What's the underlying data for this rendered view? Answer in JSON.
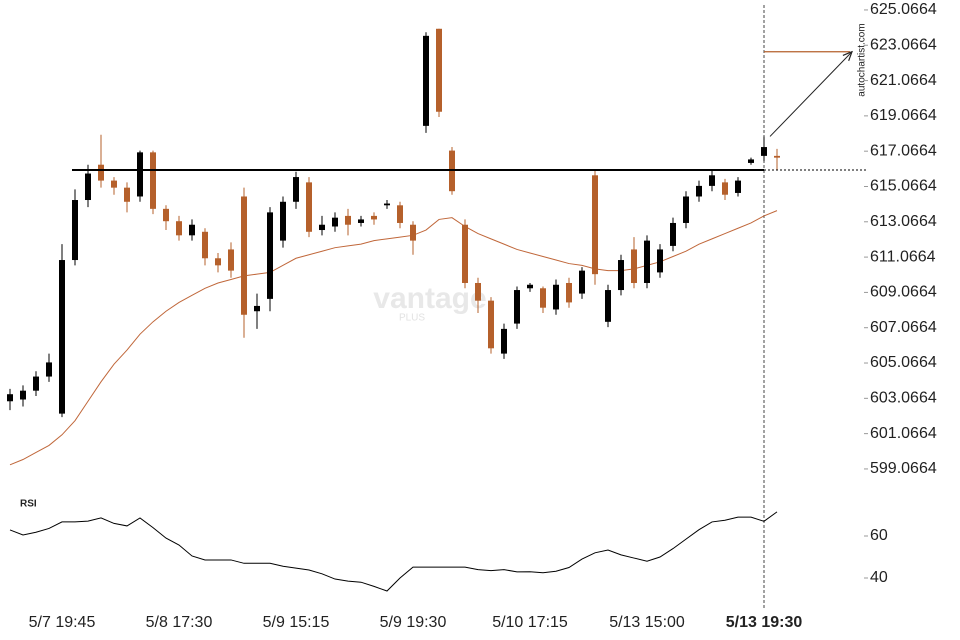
{
  "chart_data": {
    "type": "candlestick",
    "categories": [
      null,
      null,
      null,
      null,
      "5/7 19:45",
      null,
      null,
      null,
      null,
      null,
      null,
      null,
      null,
      "5/8 17:30",
      null,
      null,
      null,
      null,
      null,
      null,
      null,
      null,
      "5/9 15:15",
      null,
      null,
      null,
      null,
      null,
      null,
      null,
      null,
      "5/9 19:30",
      null,
      null,
      null,
      null,
      null,
      null,
      null,
      null,
      "5/10 17:15",
      null,
      null,
      null,
      null,
      null,
      null,
      null,
      null,
      "5/13 15:00",
      null,
      null,
      null,
      null,
      null,
      null,
      null,
      null,
      "5/13 19:30",
      null
    ],
    "open": [
      602.9,
      603.0,
      603.5,
      604.3,
      602.2,
      610.9,
      614.3,
      616.3,
      615.4,
      615.0,
      614.5,
      617.0,
      613.8,
      613.1,
      612.3,
      612.5,
      611.0,
      611.5,
      614.5,
      608.0,
      608.7,
      612.0,
      614.2,
      615.3,
      612.6,
      612.8,
      613.4,
      613.0,
      613.4,
      614.0,
      614.0,
      612.9,
      618.5,
      624.0,
      617.1,
      612.9,
      609.6,
      608.6,
      605.6,
      607.3,
      609.3,
      609.3,
      608.1,
      609.6,
      609.0,
      615.7,
      607.4,
      609.2,
      611.5,
      609.6,
      610.2,
      611.7,
      613.0,
      614.5,
      615.1,
      615.3,
      614.7,
      616.4,
      616.8,
      616.8
    ],
    "high": [
      603.6,
      603.8,
      604.6,
      605.6,
      611.8,
      614.9,
      616.3,
      618.0,
      615.6,
      615.3,
      617.1,
      617.1,
      614.0,
      613.4,
      613.2,
      612.7,
      611.3,
      611.9,
      615.0,
      609.0,
      613.9,
      614.5,
      615.9,
      615.6,
      613.4,
      613.6,
      613.8,
      613.4,
      613.6,
      614.3,
      614.2,
      613.1,
      623.8,
      624.0,
      617.3,
      613.2,
      609.9,
      608.8,
      607.3,
      609.4,
      609.6,
      609.4,
      609.8,
      609.9,
      610.5,
      616.0,
      609.5,
      611.2,
      612.2,
      612.3,
      611.8,
      613.3,
      614.8,
      615.4,
      616.0,
      615.5,
      615.6,
      616.7,
      617.9,
      617.2
    ],
    "low": [
      602.4,
      602.6,
      603.2,
      604.0,
      602.0,
      610.6,
      613.9,
      615.0,
      614.6,
      613.6,
      614.2,
      613.5,
      612.6,
      612.0,
      612.0,
      610.6,
      610.2,
      609.9,
      606.5,
      607.0,
      608.0,
      611.6,
      613.8,
      612.2,
      612.3,
      612.5,
      612.3,
      612.8,
      612.9,
      613.8,
      612.7,
      611.2,
      618.1,
      619.0,
      614.6,
      609.3,
      607.9,
      605.6,
      605.3,
      607.0,
      609.1,
      607.9,
      607.8,
      608.2,
      608.7,
      609.5,
      607.1,
      608.9,
      609.3,
      609.3,
      609.9,
      611.4,
      612.7,
      614.2,
      614.8,
      614.3,
      614.5,
      616.3,
      616.5,
      616.0
    ],
    "close": [
      603.3,
      603.5,
      604.3,
      605.1,
      610.9,
      614.3,
      615.8,
      615.4,
      615.0,
      614.2,
      617.0,
      613.8,
      613.1,
      612.3,
      612.9,
      611.0,
      610.6,
      610.3,
      607.8,
      608.3,
      613.6,
      614.2,
      615.6,
      612.5,
      612.9,
      613.3,
      612.9,
      613.2,
      613.2,
      614.1,
      613.0,
      612.0,
      623.6,
      619.3,
      614.8,
      609.6,
      608.6,
      605.9,
      607.0,
      609.2,
      609.5,
      608.2,
      609.5,
      608.5,
      610.3,
      610.1,
      609.2,
      610.9,
      609.6,
      612.0,
      611.5,
      613.0,
      614.5,
      615.1,
      615.7,
      614.6,
      615.4,
      616.6,
      617.3,
      616.7
    ],
    "up_color": "#000000",
    "down_color": "#b5602b",
    "ylim": [
      598.44,
      625.63
    ],
    "yticks": [
      599.0664,
      601.0664,
      603.0664,
      605.0664,
      607.0664,
      609.0664,
      611.0664,
      613.0664,
      615.0664,
      617.0664,
      619.0664,
      621.0664,
      623.0664,
      625.0664
    ],
    "level": 616.0,
    "target": 622.7,
    "ma": {
      "color": "#c0673a",
      "values": [
        599.3,
        599.6,
        600.0,
        600.4,
        601.0,
        601.8,
        602.9,
        604.0,
        605.0,
        605.8,
        606.7,
        607.4,
        608.0,
        608.5,
        608.9,
        609.3,
        609.6,
        609.8,
        610.0,
        610.1,
        610.2,
        610.6,
        611.0,
        611.2,
        611.4,
        611.6,
        611.7,
        611.8,
        612.0,
        612.1,
        612.2,
        612.3,
        612.6,
        613.2,
        613.3,
        612.8,
        612.4,
        612.1,
        611.8,
        611.5,
        611.3,
        611.1,
        610.9,
        610.7,
        610.6,
        610.4,
        610.3,
        610.3,
        610.4,
        610.6,
        610.8,
        611.1,
        611.4,
        611.8,
        612.1,
        612.4,
        612.7,
        613.0,
        613.4,
        613.7
      ]
    },
    "rsi": {
      "label": "RSI",
      "color": "#000000",
      "ylim": [
        30,
        80
      ],
      "yticks": [
        40,
        60
      ],
      "values": [
        62.9,
        60.5,
        61.8,
        63.6,
        66.7,
        66.7,
        67.1,
        68.6,
        66.0,
        64.8,
        68.6,
        64.0,
        59.0,
        55.7,
        50.5,
        48.6,
        48.6,
        48.6,
        47.0,
        47.0,
        47.0,
        45.6,
        44.7,
        43.8,
        42.0,
        39.5,
        38.5,
        38.0,
        36.0,
        33.8,
        40.0,
        45.2,
        45.2,
        45.2,
        45.2,
        45.2,
        44.0,
        43.5,
        44.0,
        42.9,
        43.0,
        42.5,
        43.2,
        45.0,
        49.0,
        52.0,
        53.3,
        51.0,
        49.5,
        48.0,
        50.0,
        54.0,
        58.5,
        63.0,
        66.7,
        67.5,
        69.0,
        69.0,
        67.0,
        71.5
      ]
    },
    "watermark": "vantage",
    "watermark_sub": "PLUS",
    "source": "autochartist.com"
  }
}
